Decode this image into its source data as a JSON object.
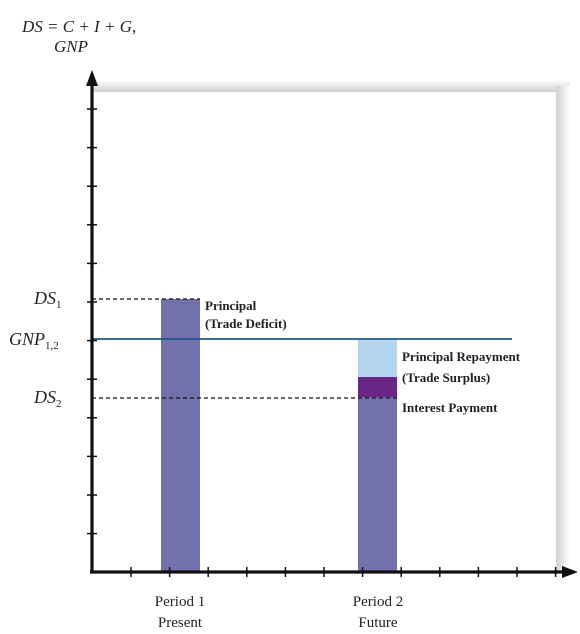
{
  "chart_data": {
    "type": "bar",
    "y_axis_label_line1": "DS = C + I + G,",
    "y_axis_label_line2": "GNP",
    "categories": [
      {
        "line1": "Period 1",
        "line2": "Present"
      },
      {
        "line1": "Period 2",
        "line2": "Future"
      }
    ],
    "levels": {
      "ds1": {
        "base": "DS",
        "sub": "1"
      },
      "gnp": {
        "base": "GNP",
        "sub": "1,2"
      },
      "ds2": {
        "base": "DS",
        "sub": "2"
      }
    },
    "bars": [
      {
        "period": "Period 1",
        "height_level": "ds1"
      },
      {
        "period": "Period 2",
        "height_level": "gnp",
        "segments": [
          "ds2-base",
          "interest",
          "principal-repayment"
        ]
      }
    ],
    "annotations": {
      "principal_line1": "Principal",
      "principal_line2": "(Trade Deficit)",
      "repay_line1": "Principal Repayment",
      "repay_line2": "(Trade Surplus)",
      "interest": "Interest Payment"
    },
    "colors": {
      "bar": "#7371ac",
      "principal_repayment": "#b5d5ee",
      "interest_payment": "#6b2587",
      "gnp_line": "#1e5a8a",
      "axis": "#111111",
      "plot_shadow": "#d9d9d9"
    }
  }
}
